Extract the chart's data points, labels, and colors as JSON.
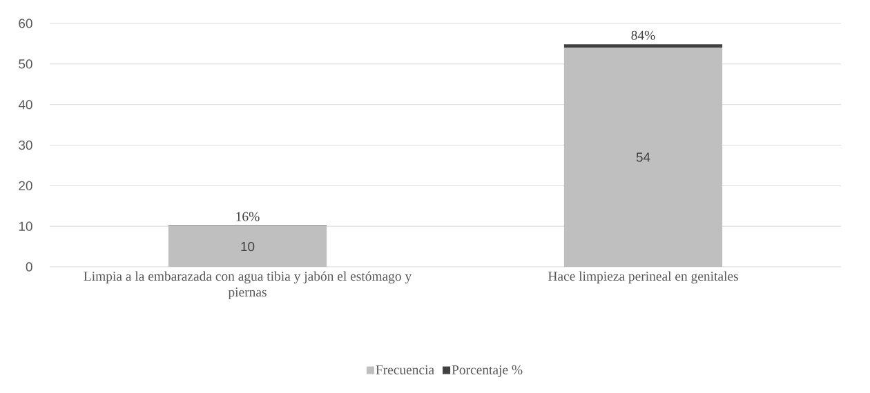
{
  "chart_data": {
    "type": "bar",
    "stacked": true,
    "categories": [
      "Limpia a la embarazada con agua tibia y jabón el estómago y piernas",
      "Hace limpieza perineal en genitales"
    ],
    "series": [
      {
        "name": "Frecuencia",
        "color": "#bfbfbf",
        "values": [
          10,
          54
        ],
        "value_labels": [
          "10",
          "54"
        ]
      },
      {
        "name": "Porcentaje %",
        "color": "#404040",
        "values": [
          0.16,
          0.84
        ],
        "value_labels": [
          "16%",
          "84%"
        ]
      }
    ],
    "ylim": [
      0,
      60
    ],
    "yticks": [
      0,
      10,
      20,
      30,
      40,
      50,
      60
    ],
    "grid": "y",
    "legend": "bottom"
  }
}
